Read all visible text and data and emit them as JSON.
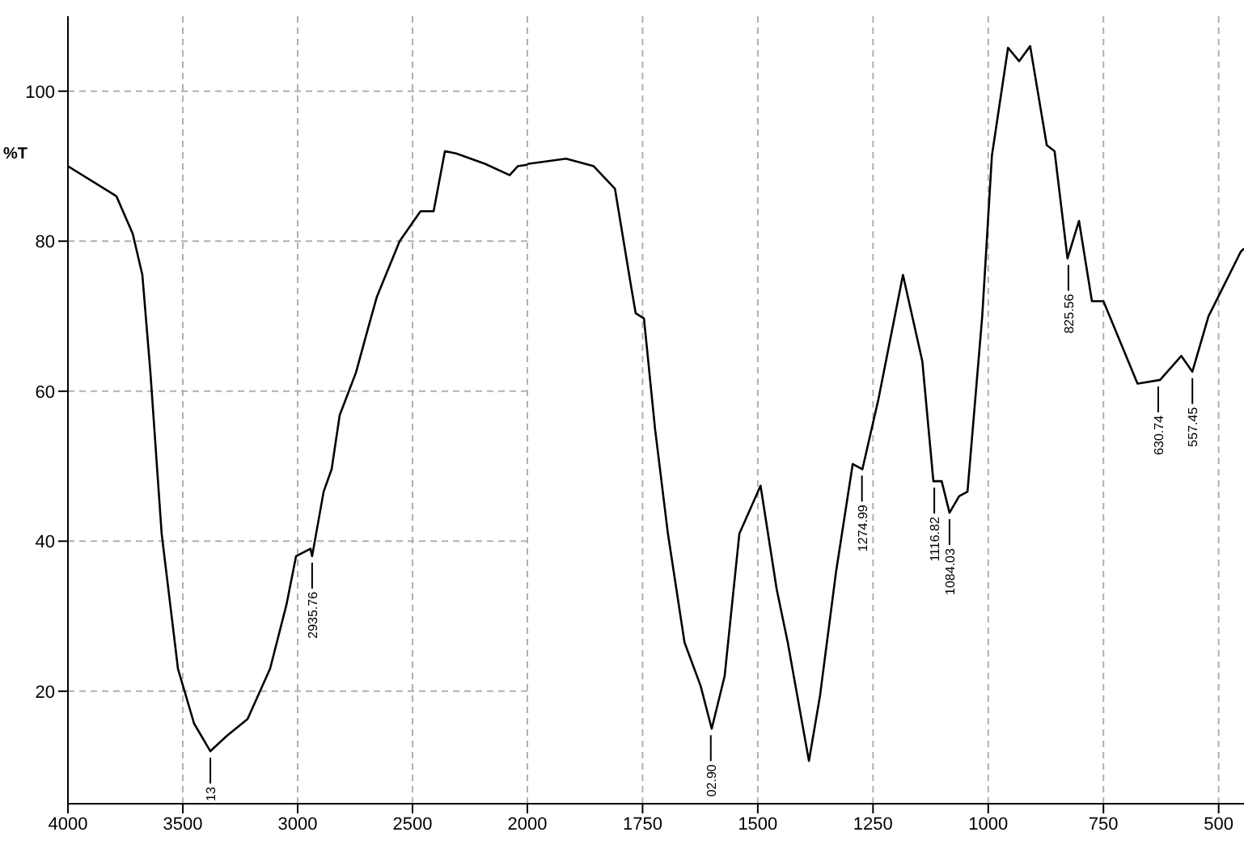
{
  "chart_data": [
    {
      "type": "line",
      "ylabel": "%T",
      "xlim": [
        4000,
        2000
      ],
      "ylim": [
        5,
        110
      ],
      "xticks": [
        4000,
        3500,
        3000,
        2500,
        2000
      ],
      "yticks": [
        20,
        40,
        60,
        80,
        100
      ],
      "grid": true,
      "series": [
        {
          "color": "#000000",
          "x": [
            4000,
            3789,
            3718,
            3676,
            3641,
            3592,
            3521,
            3451,
            3380,
            3310,
            3218,
            3120,
            3049,
            3007,
            2944,
            2937,
            2887,
            2852,
            2817,
            2746,
            2697,
            2655,
            2556,
            2465,
            2408,
            2359,
            2310,
            2183,
            2077,
            2042,
            2000
          ],
          "values": [
            90,
            86,
            81,
            75.5,
            62.5,
            41,
            23,
            15.7,
            12,
            14,
            16.3,
            23,
            31.5,
            38,
            39,
            38,
            46.6,
            49.6,
            56.8,
            62.5,
            68,
            72.6,
            80,
            84,
            84,
            92,
            91.7,
            90.3,
            88.8,
            90,
            90.2
          ]
        }
      ],
      "annotations": [
        {
          "text": "13",
          "x": 3380,
          "y": 12
        },
        {
          "text": "2935.76",
          "x": 2937,
          "y": 38
        }
      ]
    },
    {
      "type": "line",
      "tick_labels": "x",
      "xlim": [
        2000,
        445
      ],
      "ylim": [
        5,
        110
      ],
      "xticks": [
        1750,
        1500,
        1250,
        1000,
        750,
        500
      ],
      "yticks": [
        20,
        40,
        60,
        80,
        100
      ],
      "grid": true,
      "series": [
        {
          "color": "#000000",
          "x": [
            2000,
            1916,
            1856,
            1810,
            1775,
            1765,
            1747,
            1723,
            1695,
            1659,
            1624,
            1600,
            1572,
            1540,
            1494,
            1459,
            1435,
            1389,
            1365,
            1330,
            1294,
            1273,
            1238,
            1185,
            1143,
            1119,
            1101,
            1084,
            1063,
            1045,
            1013,
            992,
            957,
            933,
            909,
            873,
            856,
            828,
            803,
            775,
            750,
            676,
            627,
            581,
            557,
            522,
            452,
            445
          ],
          "values": [
            90.3,
            91,
            90,
            87,
            74,
            70.4,
            69.7,
            55,
            41,
            26.5,
            20.7,
            15,
            22,
            41,
            47.4,
            33.6,
            26.5,
            10.7,
            19.4,
            36,
            50.3,
            49.6,
            59,
            75.5,
            64,
            48,
            48,
            43.8,
            46,
            46.6,
            70,
            91.4,
            105.8,
            104,
            106,
            92.8,
            92,
            77.7,
            82.7,
            72,
            72,
            61,
            61.5,
            64.7,
            62.6,
            70,
            78.6,
            79
          ]
        }
      ],
      "annotations": [
        {
          "text": "02.90",
          "x": 1602,
          "y": 15
        },
        {
          "text": "1274.99",
          "x": 1274,
          "y": 49.6
        },
        {
          "text": "1116.82",
          "x": 1117,
          "y": 48
        },
        {
          "text": "1084.03",
          "x": 1084,
          "y": 43.8
        },
        {
          "text": "825.56",
          "x": 826,
          "y": 77.7
        },
        {
          "text": "630.74",
          "x": 631,
          "y": 61.5
        },
        {
          "text": "557.45",
          "x": 557,
          "y": 62.6
        }
      ]
    }
  ]
}
